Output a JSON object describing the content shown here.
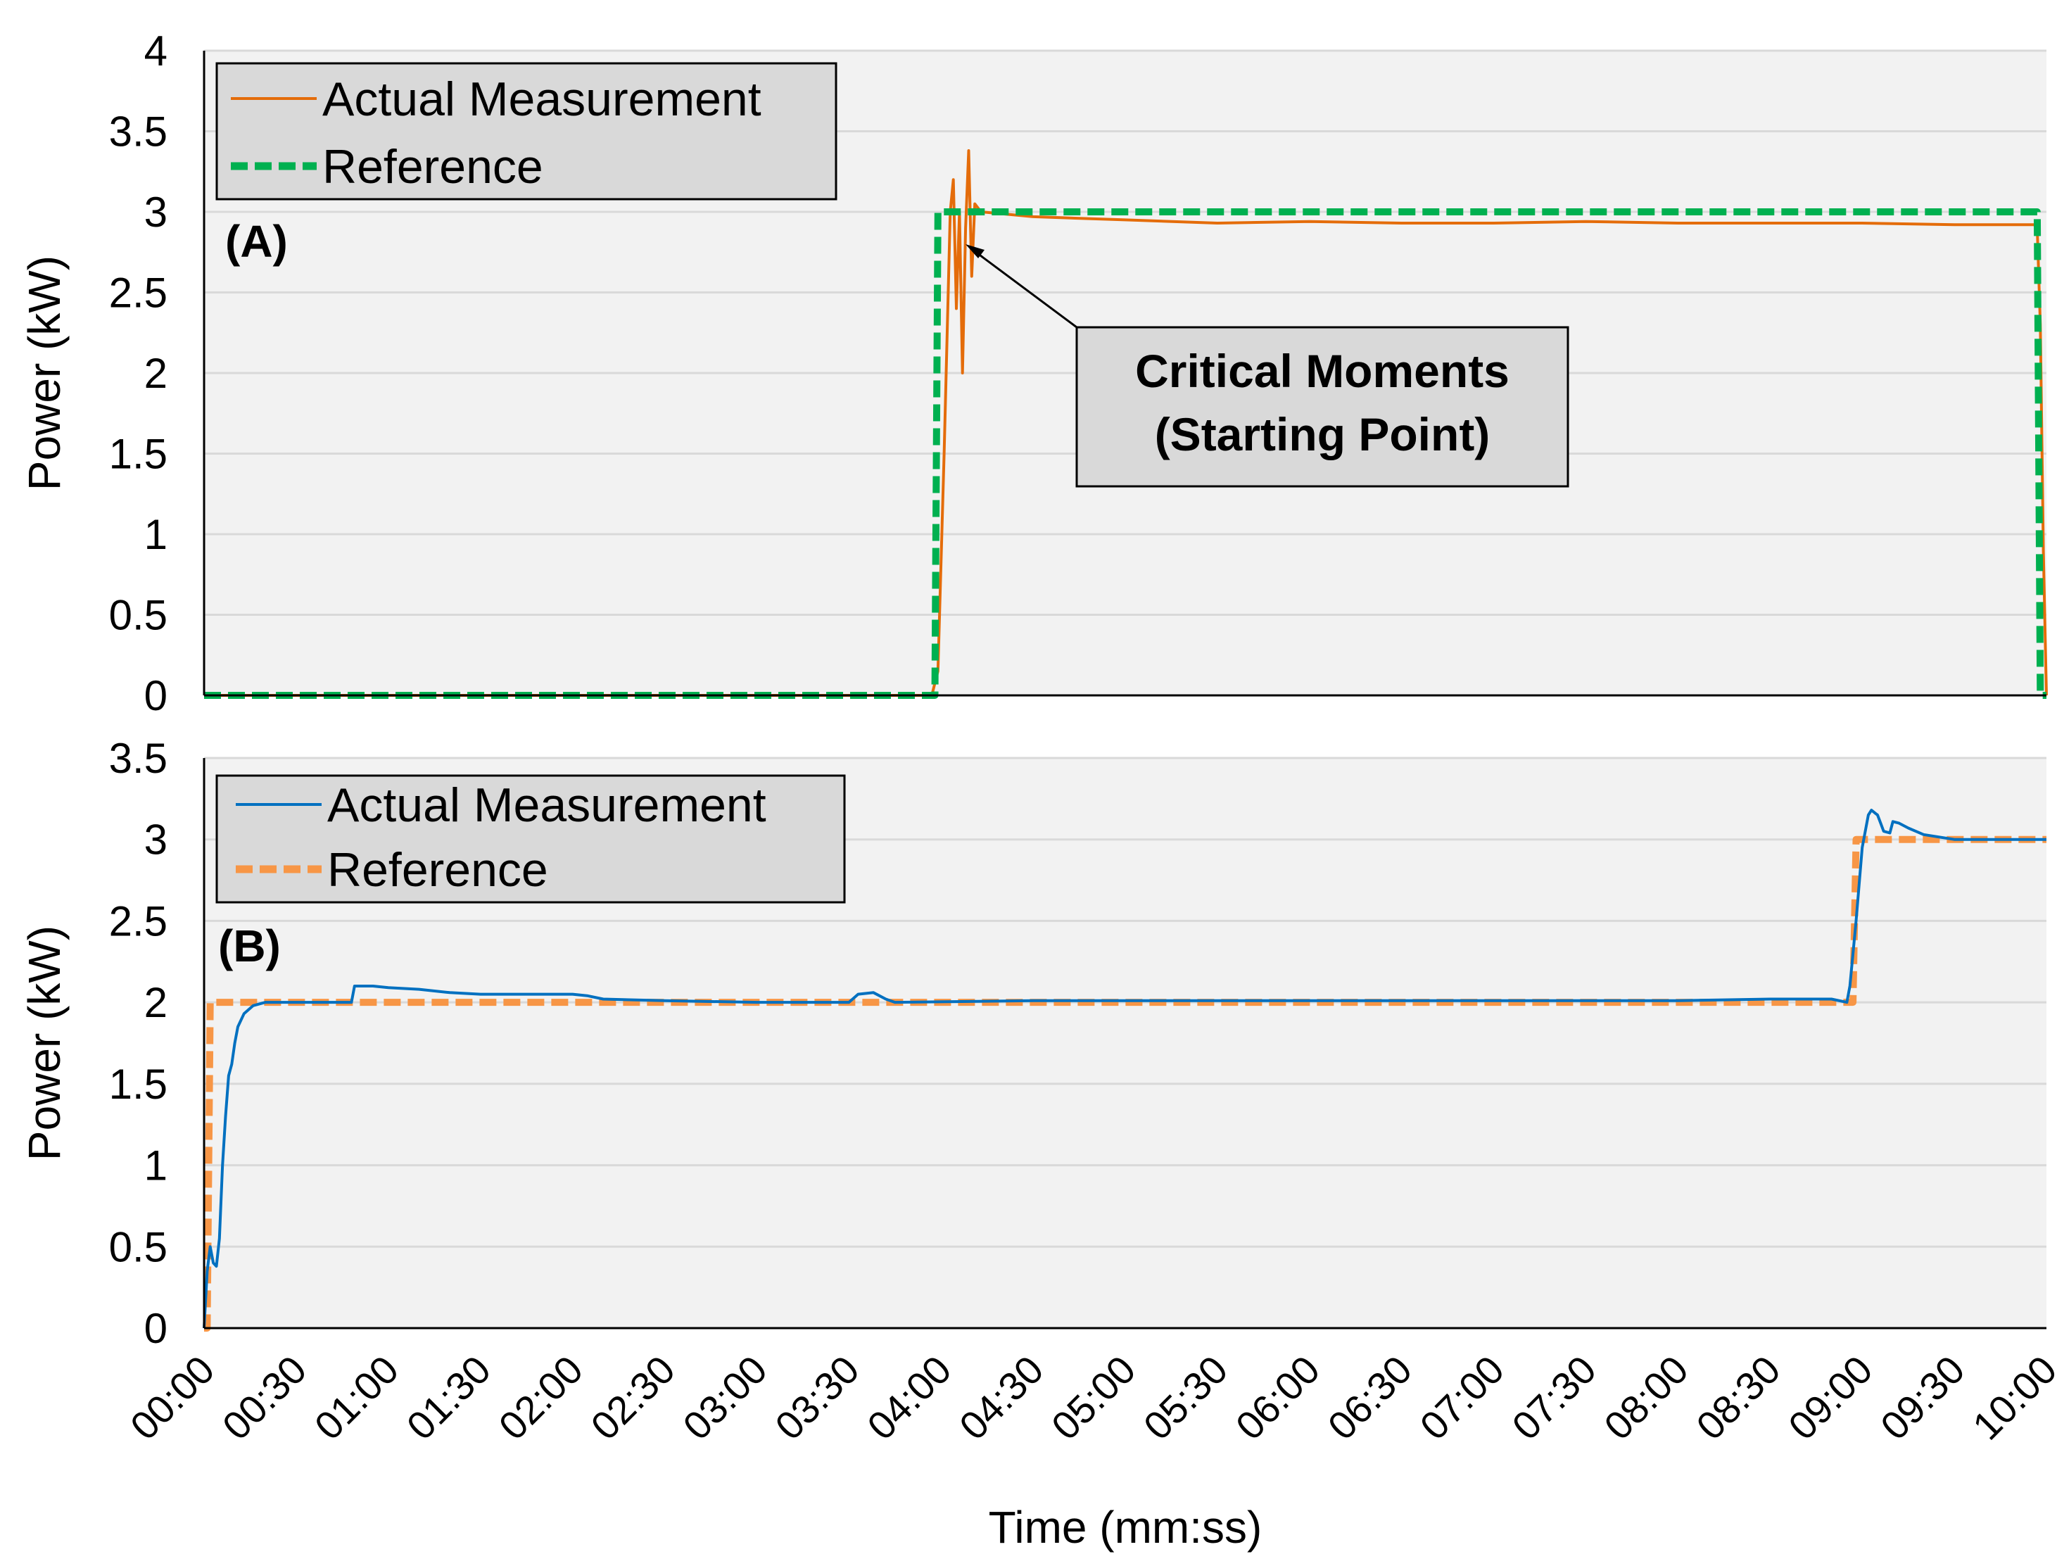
{
  "chart_data": [
    {
      "type": "line",
      "panel_label": "(A)",
      "ylabel": "Power (kW)",
      "xlabel": "",
      "x_unit": "mm:ss",
      "ylim": [
        0,
        4
      ],
      "yticks": [
        "0",
        "0.5",
        "1",
        "1.5",
        "2",
        "2.5",
        "3",
        "3.5",
        "4"
      ],
      "grid": true,
      "legend": "top-left",
      "series": [
        {
          "name": "Actual Measurement",
          "color": "#e46c0a",
          "style": "solid",
          "points": [
            [
              "00:00",
              0
            ],
            [
              "03:57",
              0
            ],
            [
              "03:59",
              0.15
            ],
            [
              "04:01",
              1.5
            ],
            [
              "04:03",
              3.0
            ],
            [
              "04:04",
              3.2
            ],
            [
              "04:05",
              2.4
            ],
            [
              "04:06",
              3.0
            ],
            [
              "04:07",
              2.0
            ],
            [
              "04:08",
              2.9
            ],
            [
              "04:09",
              3.38
            ],
            [
              "04:10",
              2.6
            ],
            [
              "04:11",
              3.05
            ],
            [
              "04:13",
              3.0
            ],
            [
              "04:30",
              2.97
            ],
            [
              "05:00",
              2.95
            ],
            [
              "05:30",
              2.93
            ],
            [
              "06:00",
              2.94
            ],
            [
              "06:30",
              2.93
            ],
            [
              "07:00",
              2.93
            ],
            [
              "07:30",
              2.94
            ],
            [
              "08:00",
              2.93
            ],
            [
              "08:30",
              2.93
            ],
            [
              "09:00",
              2.93
            ],
            [
              "09:30",
              2.92
            ],
            [
              "09:56",
              2.92
            ],
            [
              "09:57",
              2.9
            ],
            [
              "09:58",
              2.3
            ],
            [
              "09:59",
              0.9
            ],
            [
              "10:00",
              0.0
            ]
          ]
        },
        {
          "name": "Reference",
          "color": "#00b050",
          "style": "dashed",
          "points": [
            [
              "00:00",
              0
            ],
            [
              "03:58",
              0
            ],
            [
              "03:59",
              3.0
            ],
            [
              "09:57",
              3.0
            ],
            [
              "09:58",
              0
            ],
            [
              "10:00",
              0
            ]
          ]
        }
      ],
      "annotations": [
        {
          "text": [
            "Critical Moments",
            "(Starting Point)"
          ],
          "points_to": [
            "04:06",
            2.8
          ]
        }
      ]
    },
    {
      "type": "line",
      "panel_label": "(B)",
      "ylabel": "Power (kW)",
      "xlabel": "Time (mm:ss)",
      "x_unit": "mm:ss",
      "ylim": [
        0,
        3.5
      ],
      "yticks": [
        "0",
        "0.5",
        "1",
        "1.5",
        "2",
        "2.5",
        "3",
        "3.5"
      ],
      "xticks": [
        "00:00",
        "00:30",
        "01:00",
        "01:30",
        "02:00",
        "02:30",
        "03:00",
        "03:30",
        "04:00",
        "04:30",
        "05:00",
        "05:30",
        "06:00",
        "06:30",
        "07:00",
        "07:30",
        "08:00",
        "08:30",
        "09:00",
        "09:30",
        "10:00"
      ],
      "grid": true,
      "legend": "top-left",
      "series": [
        {
          "name": "Actual Measurement",
          "color": "#0070c0",
          "style": "solid",
          "points": [
            [
              "00:00",
              0
            ],
            [
              "00:01",
              0.35
            ],
            [
              "00:02",
              0.5
            ],
            [
              "00:03",
              0.4
            ],
            [
              "00:04",
              0.38
            ],
            [
              "00:05",
              0.55
            ],
            [
              "00:06",
              1.0
            ],
            [
              "00:07",
              1.3
            ],
            [
              "00:08",
              1.55
            ],
            [
              "00:09",
              1.62
            ],
            [
              "00:10",
              1.75
            ],
            [
              "00:11",
              1.85
            ],
            [
              "00:13",
              1.93
            ],
            [
              "00:16",
              1.98
            ],
            [
              "00:20",
              2.0
            ],
            [
              "00:48",
              2.0
            ],
            [
              "00:49",
              2.1
            ],
            [
              "00:55",
              2.1
            ],
            [
              "01:00",
              2.09
            ],
            [
              "01:10",
              2.08
            ],
            [
              "01:20",
              2.06
            ],
            [
              "01:30",
              2.05
            ],
            [
              "02:00",
              2.05
            ],
            [
              "02:05",
              2.04
            ],
            [
              "02:10",
              2.02
            ],
            [
              "02:30",
              2.01
            ],
            [
              "03:00",
              2.0
            ],
            [
              "03:30",
              2.0
            ],
            [
              "03:33",
              2.05
            ],
            [
              "03:38",
              2.06
            ],
            [
              "03:42",
              2.02
            ],
            [
              "03:45",
              2.0
            ],
            [
              "04:30",
              2.01
            ],
            [
              "05:00",
              2.01
            ],
            [
              "06:00",
              2.01
            ],
            [
              "07:00",
              2.01
            ],
            [
              "08:00",
              2.01
            ],
            [
              "08:30",
              2.02
            ],
            [
              "08:50",
              2.02
            ],
            [
              "08:55",
              2.0
            ],
            [
              "08:56",
              2.1
            ],
            [
              "08:58",
              2.5
            ],
            [
              "09:00",
              2.95
            ],
            [
              "09:02",
              3.15
            ],
            [
              "09:03",
              3.18
            ],
            [
              "09:05",
              3.15
            ],
            [
              "09:06",
              3.1
            ],
            [
              "09:07",
              3.05
            ],
            [
              "09:09",
              3.04
            ],
            [
              "09:10",
              3.11
            ],
            [
              "09:12",
              3.1
            ],
            [
              "09:15",
              3.07
            ],
            [
              "09:20",
              3.03
            ],
            [
              "09:30",
              3.0
            ],
            [
              "10:00",
              3.0
            ]
          ]
        },
        {
          "name": "Reference",
          "color": "#f79646",
          "style": "dashed",
          "points": [
            [
              "00:00",
              0
            ],
            [
              "00:01",
              0
            ],
            [
              "00:02",
              2.0
            ],
            [
              "08:57",
              2.0
            ],
            [
              "08:58",
              3.0
            ],
            [
              "10:00",
              3.0
            ]
          ]
        }
      ]
    }
  ]
}
